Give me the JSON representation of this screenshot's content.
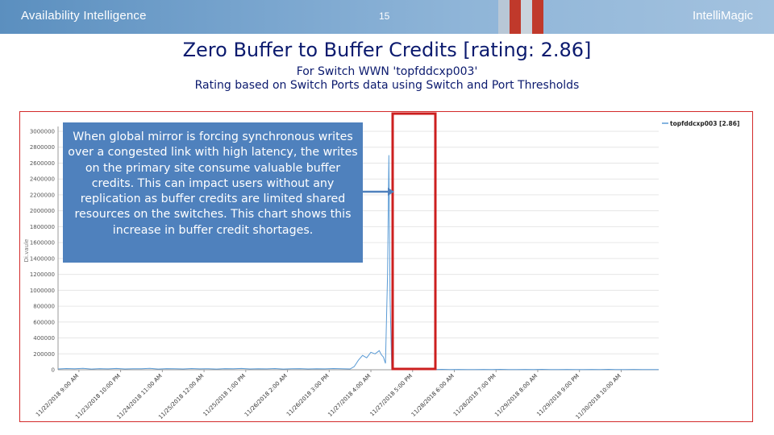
{
  "header": {
    "brand_left": "Availability Intelligence",
    "page_number": "15",
    "brand_right": "IntelliMagic"
  },
  "slide": {
    "title": "Zero Buffer to Buffer Credits [rating: 2.86]",
    "subtitle": "For Switch WWN 'topfddcxp003'",
    "subtitle2": "Rating based on Switch Ports data using Switch and Port Thresholds"
  },
  "callout": {
    "text": "When global mirror is forcing synchronous writes over a congested link with high latency, the writes on the primary site consume valuable buffer credits.  This can impact users without any replication as buffer credits are limited shared resources on the switches.  This chart shows this increase in buffer credit shortages."
  },
  "colors": {
    "title": "#0b1a6e",
    "callout_bg": "#4f81bd",
    "series_line": "#5b9bd5",
    "highlight_box": "#d32a2a",
    "arrow": "#4f81bd"
  },
  "chart_data": {
    "type": "line",
    "title": "",
    "xlabel": "",
    "ylabel": "Di.vaule",
    "ylim": [
      0,
      3000000
    ],
    "y_ticks": [
      "0",
      "200000",
      "400000",
      "600000",
      "800000",
      "1000000",
      "1200000",
      "1400000",
      "1600000",
      "1800000",
      "2000000",
      "2200000",
      "2400000",
      "2600000",
      "2800000",
      "3000000"
    ],
    "x_ticks": [
      "11/22/2018 9:00 AM",
      "11/23/2018 10:00 PM",
      "11/24/2018 11:00 AM",
      "11/25/2018 12:00 AM",
      "11/25/2018 1:00 PM",
      "11/26/2018 2:00 AM",
      "11/26/2018 3:00 PM",
      "11/27/2018 4:00 AM",
      "11/27/2018 5:00 PM",
      "11/28/2018 6:00 AM",
      "11/28/2018 7:00 PM",
      "11/29/2018 8:00 AM",
      "11/29/2018 9:00 PM",
      "11/30/2018 10:00 AM"
    ],
    "legend": "top-right",
    "series": [
      {
        "name": "topfddcxp003 [2.86]",
        "points": [
          [
            0,
            10000
          ],
          [
            0.2,
            15000
          ],
          [
            0.4,
            12000
          ],
          [
            0.6,
            18000
          ],
          [
            0.8,
            9000
          ],
          [
            1.0,
            14000
          ],
          [
            1.2,
            11000
          ],
          [
            1.4,
            16000
          ],
          [
            1.6,
            10000
          ],
          [
            1.8,
            13000
          ],
          [
            2.0,
            12000
          ],
          [
            2.2,
            17000
          ],
          [
            2.4,
            9000
          ],
          [
            2.6,
            14000
          ],
          [
            2.8,
            12000
          ],
          [
            3.0,
            10000
          ],
          [
            3.2,
            15000
          ],
          [
            3.4,
            11000
          ],
          [
            3.6,
            13000
          ],
          [
            3.8,
            9000
          ],
          [
            4.0,
            14000
          ],
          [
            4.2,
            12000
          ],
          [
            4.4,
            16000
          ],
          [
            4.6,
            10000
          ],
          [
            4.8,
            13000
          ],
          [
            5.0,
            11000
          ],
          [
            5.2,
            15000
          ],
          [
            5.4,
            9000
          ],
          [
            5.6,
            12000
          ],
          [
            5.8,
            14000
          ],
          [
            6.0,
            10000
          ],
          [
            6.2,
            13000
          ],
          [
            6.4,
            11000
          ],
          [
            6.6,
            15000
          ],
          [
            6.8,
            12000
          ],
          [
            7.0,
            10000
          ],
          [
            7.1,
            40000
          ],
          [
            7.2,
            120000
          ],
          [
            7.3,
            180000
          ],
          [
            7.4,
            150000
          ],
          [
            7.5,
            220000
          ],
          [
            7.6,
            200000
          ],
          [
            7.7,
            240000
          ],
          [
            7.75,
            190000
          ],
          [
            7.8,
            160000
          ],
          [
            7.85,
            80000
          ],
          [
            7.9,
            1200000
          ],
          [
            7.93,
            2700000
          ],
          [
            7.96,
            900000
          ],
          [
            8.0,
            10000
          ],
          [
            8.2,
            3000
          ],
          [
            8.4,
            5000
          ],
          [
            8.6,
            2000
          ],
          [
            8.8,
            4000
          ],
          [
            9.0,
            3000
          ],
          [
            9.2,
            5000
          ],
          [
            9.4,
            2000
          ],
          [
            9.6,
            4000
          ],
          [
            9.8,
            3000
          ],
          [
            10.0,
            2000
          ],
          [
            10.2,
            4000
          ],
          [
            10.4,
            3000
          ],
          [
            10.6,
            5000
          ],
          [
            10.8,
            2000
          ],
          [
            11.0,
            3000
          ],
          [
            11.2,
            4000
          ],
          [
            11.4,
            2000
          ],
          [
            11.6,
            5000
          ],
          [
            11.8,
            3000
          ],
          [
            12.0,
            2000
          ],
          [
            12.2,
            4000
          ],
          [
            12.4,
            3000
          ],
          [
            12.6,
            2000
          ],
          [
            12.8,
            4000
          ],
          [
            13.0,
            3000
          ],
          [
            13.2,
            5000
          ],
          [
            13.4,
            2000
          ],
          [
            13.6,
            3000
          ],
          [
            13.8,
            4000
          ],
          [
            14.0,
            3000
          ],
          [
            14.4,
            2000
          ]
        ]
      }
    ]
  }
}
